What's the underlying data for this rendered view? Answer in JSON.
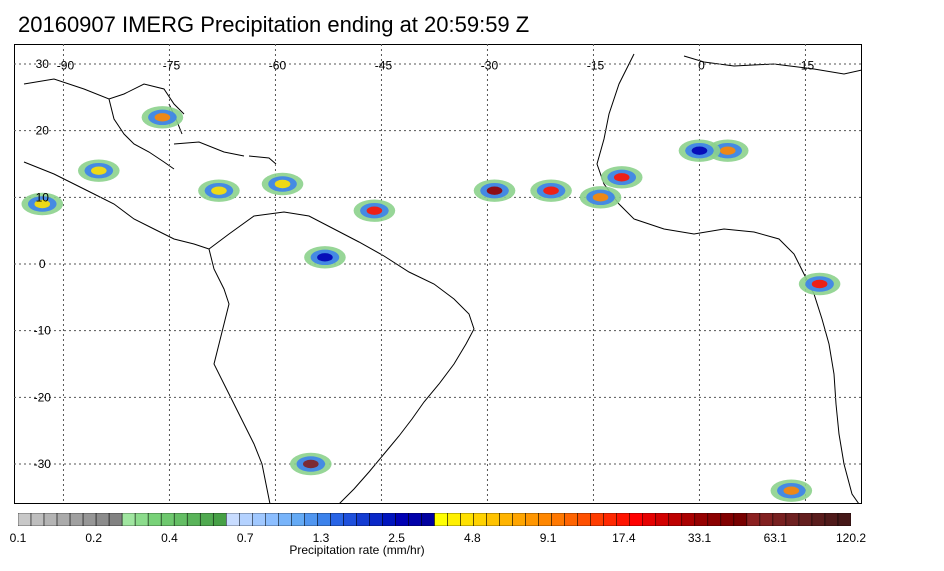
{
  "title": "20160907 IMERG Precipitation ending at 20:59:59 Z",
  "map": {
    "lon_labels": [
      "-90",
      "-75",
      "-60",
      "-45",
      "-30",
      "-15",
      "0",
      "15"
    ],
    "lat_labels": [
      "30",
      "20",
      "10",
      "0",
      "-10",
      "-20",
      "-30"
    ],
    "lon_values": [
      -90,
      -75,
      -60,
      -45,
      -30,
      -15,
      0,
      15
    ],
    "lat_values": [
      30,
      20,
      10,
      0,
      -10,
      -20,
      -30
    ],
    "lon_range": [
      -97,
      23
    ],
    "lat_range": [
      -36,
      33
    ],
    "gridlines": "dotted"
  },
  "colorbar": {
    "title": "Precipitation rate (mm/hr)",
    "tick_labels": [
      "0.1",
      "0.2",
      "0.4",
      "0.7",
      "1.3",
      "2.5",
      "4.8",
      "9.1",
      "17.4",
      "33.1",
      "63.1",
      "120.2"
    ],
    "colors": [
      "#c8c8c8",
      "#bebebe",
      "#b4b4b4",
      "#aaaaaa",
      "#a0a0a0",
      "#969696",
      "#8c8c8c",
      "#828282",
      "#a0e6a0",
      "#8cdc8c",
      "#78d278",
      "#6ec86e",
      "#64be64",
      "#5ab45a",
      "#50aa50",
      "#46a046",
      "#c8dcff",
      "#b4d2ff",
      "#a0c8ff",
      "#8cbeff",
      "#78b4fa",
      "#64aaf5",
      "#5096f0",
      "#3c82eb",
      "#2864e6",
      "#1e50dc",
      "#143cd2",
      "#0a28c8",
      "#0014be",
      "#0000b4",
      "#0000aa",
      "#0000a0",
      "#ffff00",
      "#fff000",
      "#ffe100",
      "#ffd200",
      "#ffc300",
      "#ffb400",
      "#ffa500",
      "#ff9600",
      "#ff8700",
      "#ff7800",
      "#ff6400",
      "#ff5000",
      "#ff3c00",
      "#ff2800",
      "#ff1400",
      "#ff0000",
      "#e60000",
      "#d20000",
      "#be0000",
      "#aa0000",
      "#960000",
      "#8c0000",
      "#820000",
      "#780000",
      "#8c2020",
      "#822020",
      "#782020",
      "#6e2020",
      "#641e1e",
      "#5a1c1c",
      "#501a1a",
      "#461818"
    ]
  },
  "precipitation_cells": [
    {
      "lon": -68,
      "lat": 11,
      "rate": 4.8
    },
    {
      "lon": -46,
      "lat": 8,
      "rate": 17.4
    },
    {
      "lon": -29,
      "lat": 11,
      "rate": 33.1
    },
    {
      "lon": -21,
      "lat": 11,
      "rate": 17.4
    },
    {
      "lon": -11,
      "lat": 13,
      "rate": 17.4
    },
    {
      "lon": -76,
      "lat": 22,
      "rate": 9.1
    },
    {
      "lon": -59,
      "lat": 12,
      "rate": 4.8
    },
    {
      "lon": -53,
      "lat": 1,
      "rate": 2.5
    },
    {
      "lon": -55,
      "lat": -30,
      "rate": 63.1
    },
    {
      "lon": 4,
      "lat": 17,
      "rate": 9.1
    },
    {
      "lon": 17,
      "lat": -3,
      "rate": 17.4
    },
    {
      "lon": 13,
      "lat": -34,
      "rate": 9.1
    },
    {
      "lon": -93,
      "lat": 9,
      "rate": 4.8
    },
    {
      "lon": -14,
      "lat": 10,
      "rate": 9.1
    },
    {
      "lon": 0,
      "lat": 17,
      "rate": 2.5
    },
    {
      "lon": -85,
      "lat": 14,
      "rate": 4.8
    }
  ]
}
